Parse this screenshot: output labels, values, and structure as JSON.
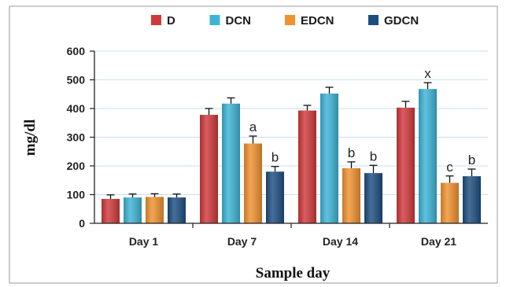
{
  "chart_data": {
    "type": "bar",
    "title": "",
    "xlabel": "Sample day",
    "ylabel": "mg/dl",
    "ylim": [
      0,
      600
    ],
    "yticks": [
      0,
      100,
      200,
      300,
      400,
      500,
      600
    ],
    "grid": true,
    "legend_position": "top",
    "categories": [
      "Day 1",
      "Day 7",
      "Day 14",
      "Day 21"
    ],
    "series": [
      {
        "name": "D",
        "color": "#d0393b",
        "values": [
          85,
          378,
          393,
          403
        ],
        "errors": [
          14,
          22,
          18,
          22
        ],
        "labels": [
          "",
          "",
          "",
          ""
        ]
      },
      {
        "name": "DCN",
        "color": "#3db4d6",
        "values": [
          90,
          417,
          452,
          468
        ],
        "errors": [
          12,
          20,
          22,
          22
        ],
        "labels": [
          "",
          "",
          "",
          "x"
        ]
      },
      {
        "name": "EDCN",
        "color": "#f0922f",
        "values": [
          92,
          278,
          192,
          141
        ],
        "errors": [
          11,
          26,
          22,
          24
        ],
        "labels": [
          "",
          "a",
          "b",
          "c"
        ]
      },
      {
        "name": "GDCN",
        "color": "#1d4e80",
        "values": [
          90,
          180,
          175,
          164
        ],
        "errors": [
          12,
          18,
          27,
          25
        ],
        "labels": [
          "",
          "b",
          "b",
          "b"
        ]
      }
    ]
  }
}
